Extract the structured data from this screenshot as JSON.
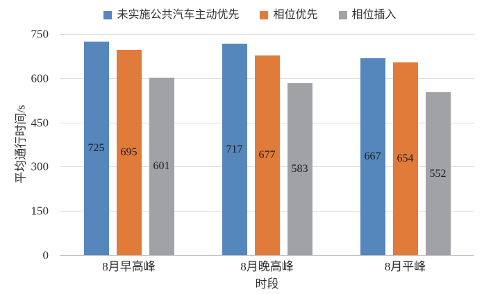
{
  "chart_data": {
    "type": "bar",
    "title": "",
    "categories": [
      "8月早高峰",
      "8月晚高峰",
      "8月平峰"
    ],
    "series": [
      {
        "name": "未实施公共汽车主动优先",
        "color": "#5586BC",
        "values": [
          725,
          717,
          667
        ]
      },
      {
        "name": "相位优先",
        "color": "#E17B3A",
        "values": [
          695,
          677,
          654
        ]
      },
      {
        "name": "相位插入",
        "color": "#A0A2A5",
        "values": [
          601,
          583,
          552
        ]
      }
    ],
    "xlabel": "时段",
    "ylabel": "平均通行时间/s",
    "ylim": [
      0,
      750
    ],
    "yticks": [
      0,
      150,
      300,
      450,
      600,
      750
    ],
    "grid": true,
    "legend_position": "top",
    "data_label_position": "center"
  }
}
